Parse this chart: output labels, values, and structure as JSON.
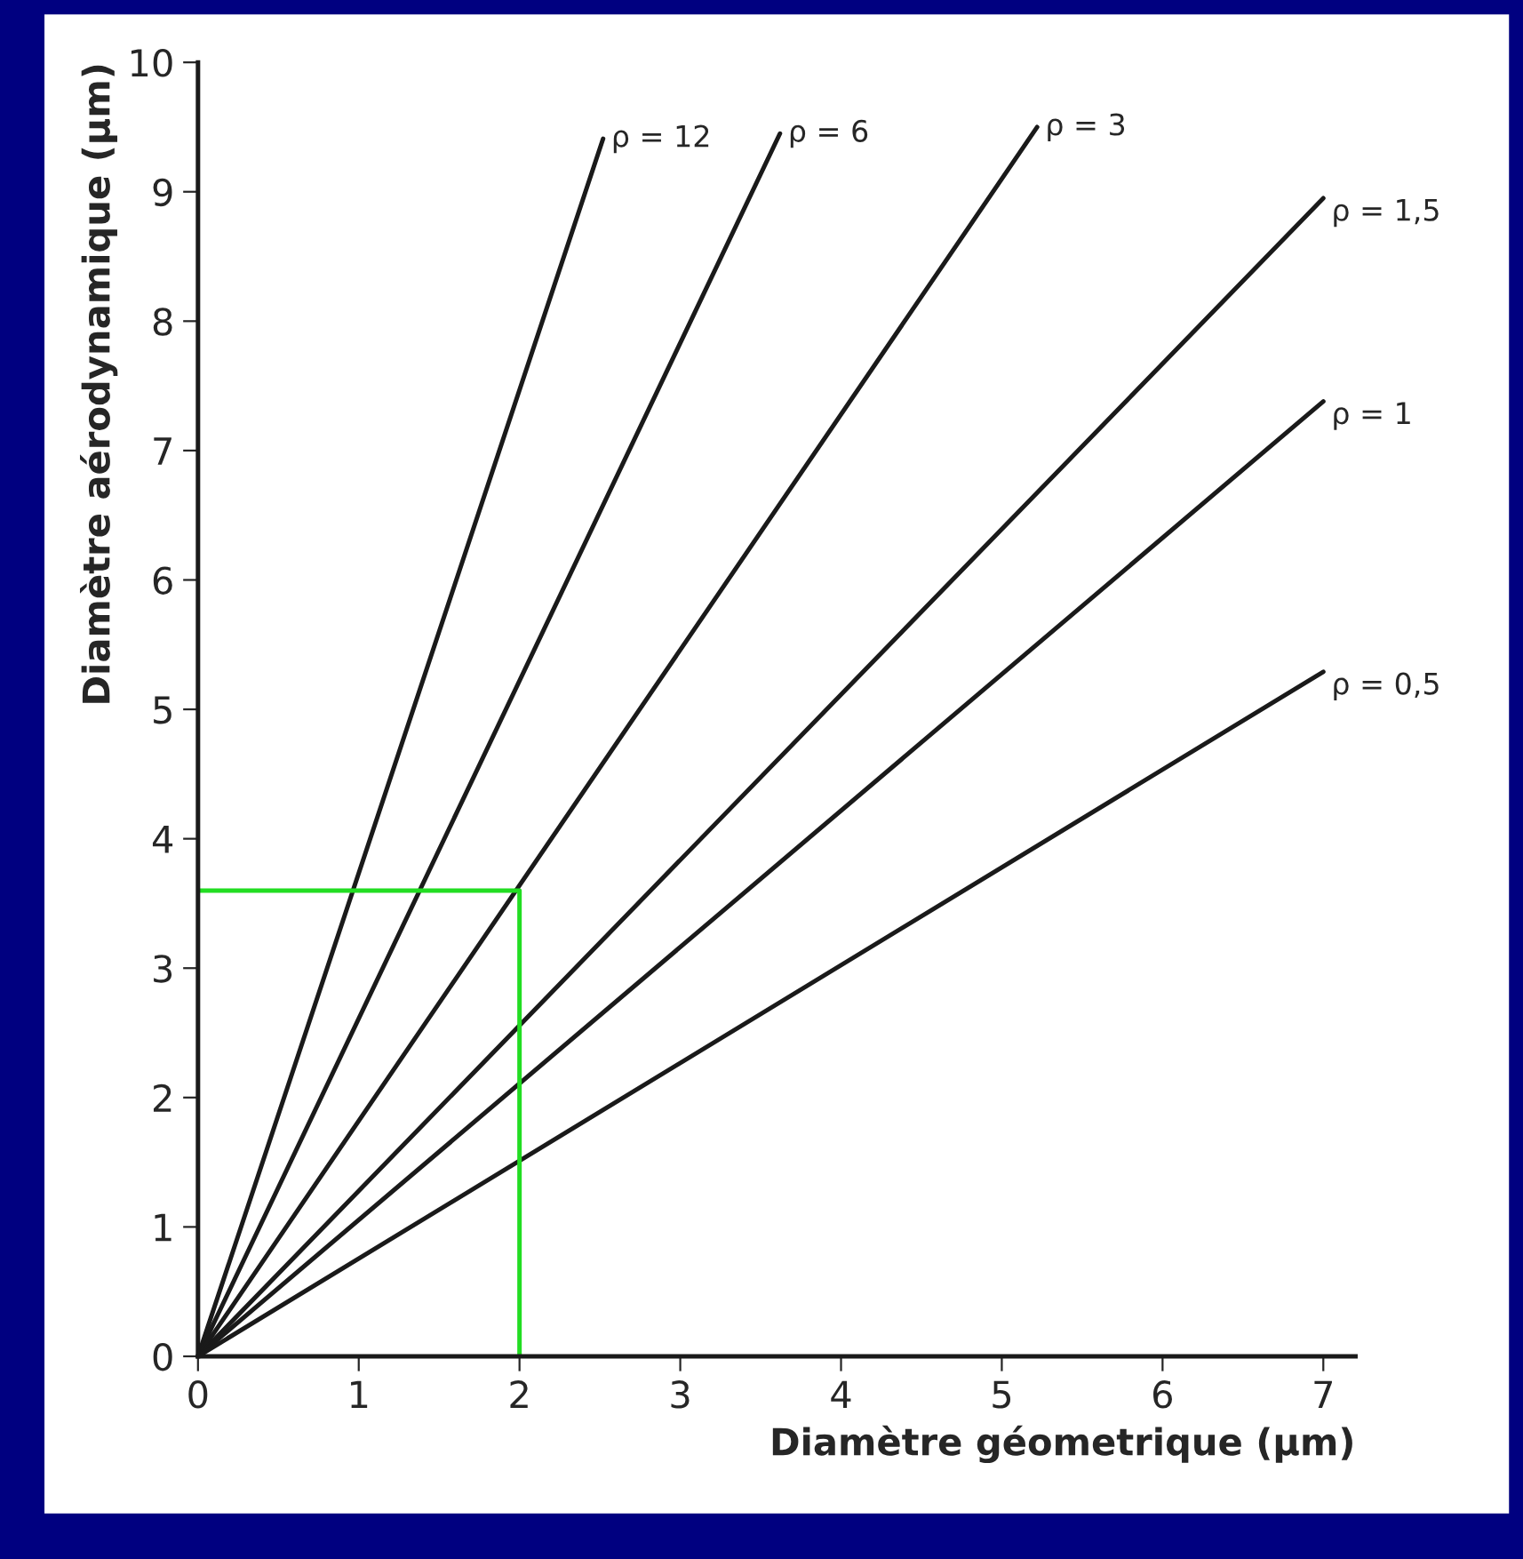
{
  "chart_data": {
    "type": "line",
    "xlabel": "Diamètre géometrique (µm)",
    "ylabel": "Diamètre aérodynamique (µm)",
    "xlim": [
      0,
      7.2
    ],
    "ylim": [
      0,
      10
    ],
    "xticks": [
      0,
      1,
      2,
      3,
      4,
      5,
      6,
      7
    ],
    "yticks": [
      0,
      1,
      2,
      3,
      4,
      5,
      6,
      7,
      8,
      9,
      10
    ],
    "grid": false,
    "legend": false,
    "marker": "none",
    "line_style": "solid",
    "series": [
      {
        "name": "ρ = 12",
        "color": "#1a1a1a",
        "x": [
          0,
          2.52
        ],
        "values": [
          0,
          9.41
        ]
      },
      {
        "name": "ρ = 6",
        "color": "#1a1a1a",
        "x": [
          0,
          3.62
        ],
        "values": [
          0,
          9.45
        ]
      },
      {
        "name": "ρ = 3",
        "color": "#1a1a1a",
        "x": [
          0,
          5.22
        ],
        "values": [
          0,
          9.5
        ]
      },
      {
        "name": "ρ = 1,5",
        "color": "#1a1a1a",
        "x": [
          0,
          7.0
        ],
        "values": [
          0,
          8.95
        ]
      },
      {
        "name": "ρ = 1",
        "color": "#1a1a1a",
        "x": [
          0,
          7.0
        ],
        "values": [
          0,
          7.38
        ]
      },
      {
        "name": "ρ = 0,5",
        "color": "#1a1a1a",
        "x": [
          0,
          7.0
        ],
        "values": [
          0,
          5.29
        ]
      },
      {
        "color": "#22dd22",
        "x": [
          0,
          2,
          2
        ],
        "values": [
          3.6,
          3.6,
          0
        ]
      }
    ]
  }
}
